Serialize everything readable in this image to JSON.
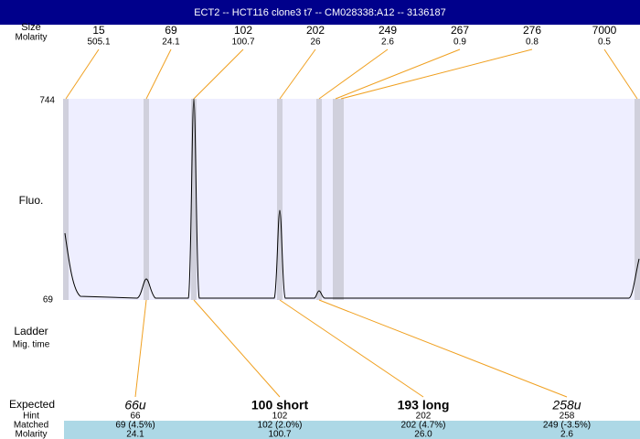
{
  "header": {
    "title": "ECT2 -- HCT116 clone3 t7 -- CM028338:A12 -- 3136187"
  },
  "top": {
    "size_label": "Size",
    "molarity_label": "Molarity",
    "peaks": [
      {
        "size": "15",
        "molarity": "505.1"
      },
      {
        "size": "69",
        "molarity": "24.1"
      },
      {
        "size": "102",
        "molarity": "100.7"
      },
      {
        "size": "202",
        "molarity": "26"
      },
      {
        "size": "249",
        "molarity": "2.6"
      },
      {
        "size": "267",
        "molarity": "0.9"
      },
      {
        "size": "276",
        "molarity": "0.8"
      },
      {
        "size": "7000",
        "molarity": "0.5"
      }
    ]
  },
  "axis": {
    "label": "Fluo.",
    "top": "744",
    "bottom": "69"
  },
  "ladder": {
    "label": "Ladder",
    "sublabel": "Mig. time"
  },
  "table": {
    "row_labels": [
      "Expected",
      "Hint",
      "Matched",
      "Molarity"
    ],
    "columns": [
      {
        "expected": "66u",
        "hint": "66",
        "matched": "69 (4.5%)",
        "molarity": "24.1"
      },
      {
        "expected": "100 short",
        "hint": "102",
        "matched": "102 (2.0%)",
        "molarity": "100.7"
      },
      {
        "expected": "193 long",
        "hint": "202",
        "matched": "202 (4.7%)",
        "molarity": "26.0"
      },
      {
        "expected": "258u",
        "hint": "258",
        "matched": "249 (-3.5%)",
        "molarity": "2.6"
      }
    ]
  }
}
